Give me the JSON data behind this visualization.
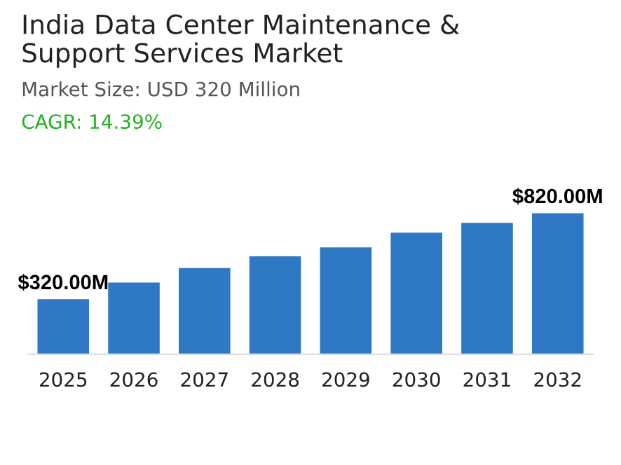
{
  "chart_data": {
    "type": "bar",
    "title": "India Data Center Maintenance &\nSupport Services Market",
    "subtitle": "Market Size: USD 320 Million",
    "annotations": [
      "CAGR: 14.39%"
    ],
    "categories": [
      "2025",
      "2026",
      "2027",
      "2028",
      "2029",
      "2030",
      "2031",
      "2032"
    ],
    "values": [
      320,
      417,
      501,
      569,
      621,
      707,
      764,
      820
    ],
    "value_labels": [
      "$320.00M",
      null,
      null,
      null,
      null,
      null,
      null,
      "$820.00M"
    ],
    "color": "#2e78c4",
    "grid": false,
    "legend": false
  }
}
